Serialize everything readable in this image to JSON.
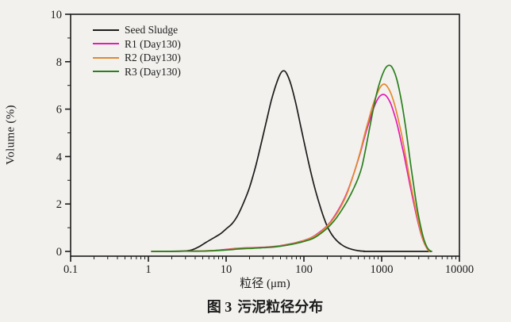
{
  "figure": {
    "y_axis_label": "Volume (%)",
    "x_axis_label": "粒径 (μm)",
    "caption_prefix": "图 3",
    "caption_text": "污泥粒径分布"
  },
  "colors": {
    "background": "#f2f1ee",
    "axis": "#1c1c1c",
    "text": "#1c1c1c",
    "seed_sludge": "#1c1c1c",
    "r1": "#e41bb4",
    "r2": "#e2categ",
    "r3": "#2b7f1e"
  },
  "chart_data": {
    "type": "line",
    "title": "",
    "xlabel": "粒径 (μm)",
    "ylabel": "Volume (%)",
    "x_scale": "log",
    "xlim": [
      0.1,
      10000
    ],
    "ylim": [
      0,
      10
    ],
    "x_ticks": [
      "0.1",
      "1",
      "10",
      "100",
      "1000",
      "10000"
    ],
    "y_ticks": [
      "0",
      "2",
      "4",
      "6",
      "8",
      "10"
    ],
    "grid": false,
    "legend_position": "top-left-inside",
    "series": [
      {
        "name": "Seed Sludge",
        "color": "#1c1c1c",
        "points": [
          [
            1.1,
            0
          ],
          [
            2,
            0
          ],
          [
            3,
            0.02
          ],
          [
            3.6,
            0.06
          ],
          [
            4.5,
            0.2
          ],
          [
            5.5,
            0.38
          ],
          [
            7,
            0.58
          ],
          [
            8.5,
            0.75
          ],
          [
            10,
            0.95
          ],
          [
            12,
            1.18
          ],
          [
            14,
            1.5
          ],
          [
            17,
            2.1
          ],
          [
            20,
            2.7
          ],
          [
            24,
            3.6
          ],
          [
            28,
            4.5
          ],
          [
            33,
            5.5
          ],
          [
            38,
            6.35
          ],
          [
            44,
            7.05
          ],
          [
            50,
            7.5
          ],
          [
            55,
            7.62
          ],
          [
            60,
            7.5
          ],
          [
            68,
            7.05
          ],
          [
            78,
            6.3
          ],
          [
            90,
            5.35
          ],
          [
            100,
            4.65
          ],
          [
            115,
            3.75
          ],
          [
            130,
            3.0
          ],
          [
            150,
            2.25
          ],
          [
            175,
            1.55
          ],
          [
            200,
            1.05
          ],
          [
            230,
            0.7
          ],
          [
            265,
            0.45
          ],
          [
            300,
            0.3
          ],
          [
            350,
            0.17
          ],
          [
            420,
            0.08
          ],
          [
            500,
            0.03
          ],
          [
            600,
            0.01
          ],
          [
            700,
            0
          ],
          [
            4300,
            0
          ]
        ]
      },
      {
        "name": "R1 (Day130)",
        "color": "#e41bb4",
        "points": [
          [
            1.1,
            0
          ],
          [
            3,
            0.01
          ],
          [
            5,
            0.02
          ],
          [
            7,
            0.04
          ],
          [
            9,
            0.07
          ],
          [
            11,
            0.1
          ],
          [
            14,
            0.13
          ],
          [
            18,
            0.15
          ],
          [
            22,
            0.16
          ],
          [
            28,
            0.17
          ],
          [
            35,
            0.19
          ],
          [
            45,
            0.22
          ],
          [
            55,
            0.27
          ],
          [
            70,
            0.33
          ],
          [
            85,
            0.4
          ],
          [
            100,
            0.46
          ],
          [
            120,
            0.56
          ],
          [
            140,
            0.68
          ],
          [
            165,
            0.85
          ],
          [
            190,
            1.02
          ],
          [
            220,
            1.25
          ],
          [
            260,
            1.6
          ],
          [
            300,
            1.95
          ],
          [
            350,
            2.4
          ],
          [
            400,
            2.9
          ],
          [
            460,
            3.5
          ],
          [
            530,
            4.15
          ],
          [
            600,
            4.8
          ],
          [
            680,
            5.4
          ],
          [
            760,
            5.9
          ],
          [
            850,
            6.3
          ],
          [
            950,
            6.55
          ],
          [
            1050,
            6.62
          ],
          [
            1150,
            6.55
          ],
          [
            1300,
            6.25
          ],
          [
            1450,
            5.8
          ],
          [
            1600,
            5.3
          ],
          [
            1800,
            4.55
          ],
          [
            2000,
            3.85
          ],
          [
            2300,
            2.85
          ],
          [
            2600,
            2.0
          ],
          [
            2900,
            1.3
          ],
          [
            3200,
            0.75
          ],
          [
            3500,
            0.38
          ],
          [
            3800,
            0.14
          ],
          [
            4000,
            0.04
          ],
          [
            4100,
            0
          ]
        ]
      },
      {
        "name": "R2 (Day130)",
        "color": "#e28a2e",
        "points": [
          [
            1.1,
            0
          ],
          [
            3,
            0.01
          ],
          [
            5,
            0.02
          ],
          [
            7,
            0.04
          ],
          [
            9,
            0.06
          ],
          [
            11,
            0.09
          ],
          [
            14,
            0.12
          ],
          [
            18,
            0.14
          ],
          [
            22,
            0.15
          ],
          [
            28,
            0.16
          ],
          [
            35,
            0.18
          ],
          [
            45,
            0.21
          ],
          [
            55,
            0.26
          ],
          [
            70,
            0.32
          ],
          [
            85,
            0.39
          ],
          [
            100,
            0.45
          ],
          [
            120,
            0.55
          ],
          [
            140,
            0.66
          ],
          [
            165,
            0.82
          ],
          [
            190,
            1.0
          ],
          [
            220,
            1.22
          ],
          [
            260,
            1.55
          ],
          [
            300,
            1.9
          ],
          [
            350,
            2.35
          ],
          [
            400,
            2.88
          ],
          [
            460,
            3.5
          ],
          [
            530,
            4.2
          ],
          [
            600,
            4.9
          ],
          [
            680,
            5.55
          ],
          [
            760,
            6.1
          ],
          [
            850,
            6.55
          ],
          [
            950,
            6.9
          ],
          [
            1050,
            7.05
          ],
          [
            1150,
            7.0
          ],
          [
            1300,
            6.7
          ],
          [
            1450,
            6.25
          ],
          [
            1600,
            5.7
          ],
          [
            1800,
            4.95
          ],
          [
            2000,
            4.15
          ],
          [
            2300,
            3.05
          ],
          [
            2600,
            2.15
          ],
          [
            2900,
            1.4
          ],
          [
            3200,
            0.8
          ],
          [
            3500,
            0.4
          ],
          [
            3800,
            0.15
          ],
          [
            4000,
            0.05
          ],
          [
            4100,
            0
          ]
        ]
      },
      {
        "name": "R3 (Day130)",
        "color": "#2b7f1e",
        "points": [
          [
            1.1,
            0
          ],
          [
            3,
            0.01
          ],
          [
            5,
            0.01
          ],
          [
            7,
            0.03
          ],
          [
            9,
            0.05
          ],
          [
            11,
            0.07
          ],
          [
            14,
            0.1
          ],
          [
            18,
            0.12
          ],
          [
            22,
            0.13
          ],
          [
            28,
            0.15
          ],
          [
            35,
            0.17
          ],
          [
            45,
            0.2
          ],
          [
            55,
            0.24
          ],
          [
            70,
            0.3
          ],
          [
            85,
            0.36
          ],
          [
            100,
            0.42
          ],
          [
            120,
            0.5
          ],
          [
            140,
            0.6
          ],
          [
            165,
            0.76
          ],
          [
            190,
            0.92
          ],
          [
            220,
            1.12
          ],
          [
            260,
            1.4
          ],
          [
            300,
            1.7
          ],
          [
            350,
            2.05
          ],
          [
            400,
            2.4
          ],
          [
            450,
            2.75
          ],
          [
            500,
            3.1
          ],
          [
            560,
            3.6
          ],
          [
            620,
            4.3
          ],
          [
            700,
            5.2
          ],
          [
            780,
            6.0
          ],
          [
            860,
            6.65
          ],
          [
            950,
            7.15
          ],
          [
            1050,
            7.55
          ],
          [
            1150,
            7.78
          ],
          [
            1250,
            7.85
          ],
          [
            1350,
            7.78
          ],
          [
            1500,
            7.45
          ],
          [
            1650,
            6.95
          ],
          [
            1850,
            6.1
          ],
          [
            2050,
            5.15
          ],
          [
            2300,
            3.95
          ],
          [
            2600,
            2.7
          ],
          [
            2900,
            1.7
          ],
          [
            3200,
            1.0
          ],
          [
            3500,
            0.5
          ],
          [
            3800,
            0.2
          ],
          [
            4100,
            0.05
          ],
          [
            4400,
            0
          ]
        ]
      }
    ]
  }
}
